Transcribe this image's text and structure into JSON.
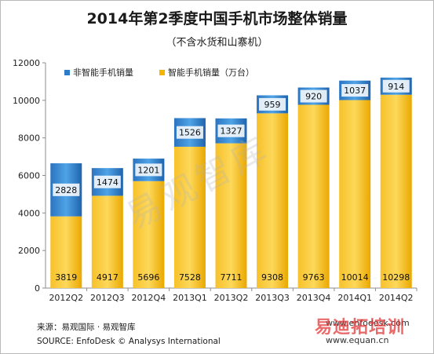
{
  "chart_data": {
    "type": "bar",
    "stacked": true,
    "title": "2014年第2季度中国手机市场整体销量",
    "subtitle": "（不含水货和山寨机）",
    "categories": [
      "2012Q2",
      "2012Q3",
      "2012Q4",
      "2013Q1",
      "2013Q2",
      "2013Q3",
      "2013Q4",
      "2014Q1",
      "2014Q2"
    ],
    "series": [
      {
        "name": "智能手机销量（万台）",
        "values": [
          3819,
          4917,
          5696,
          7528,
          7711,
          9308,
          9763,
          10014,
          10298
        ],
        "color": "#f5b400"
      },
      {
        "name": "非智能手机销量",
        "values": [
          2828,
          1474,
          1201,
          1526,
          1327,
          959,
          920,
          1037,
          914
        ],
        "color": "#2e7bc8"
      }
    ],
    "ylim": [
      0,
      12000
    ],
    "yticks": [
      0,
      2000,
      4000,
      6000,
      8000,
      10000,
      12000
    ],
    "xlabel": "",
    "ylabel": "",
    "grid": false,
    "legend": "top-left"
  },
  "footer": {
    "source_cn": "来源：易观国际 · 易观智库",
    "source_en": "SOURCE: EnfoDesk © Analysys International"
  },
  "watermarks": {
    "center": "易观智库",
    "site1": "www.enfodesk.com",
    "site2": "www.equan.cn",
    "brand": "易迪拓培训"
  }
}
